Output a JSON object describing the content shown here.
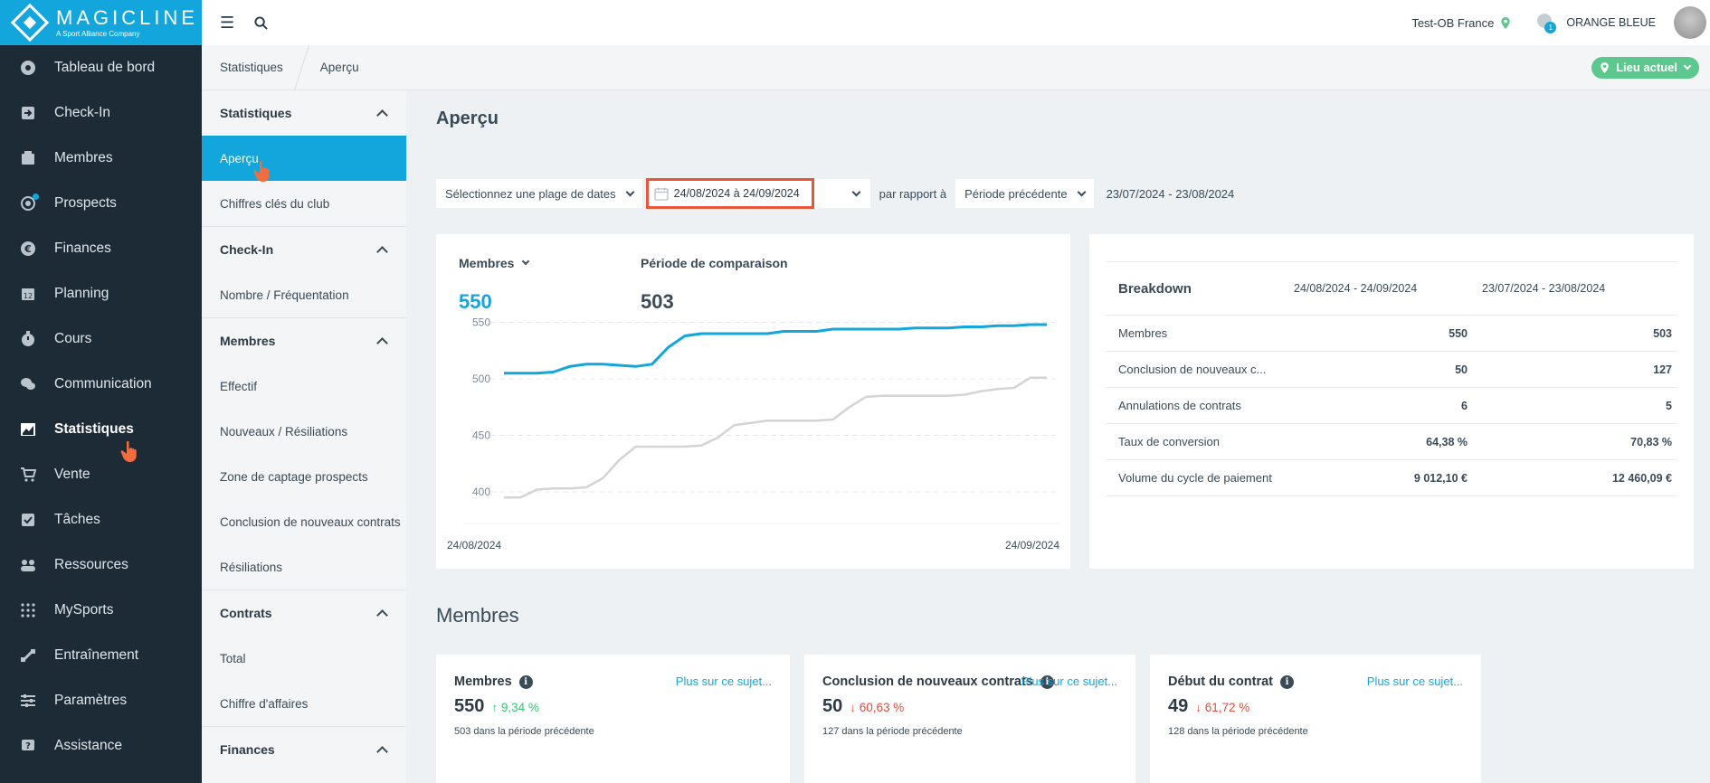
{
  "brand": {
    "name": "MAGICLINE",
    "tagline": "A Sport Alliance Company"
  },
  "sidebar": {
    "items": [
      {
        "label": "Tableau de bord",
        "icon": "dashboard-icon"
      },
      {
        "label": "Check-In",
        "icon": "checkin-icon"
      },
      {
        "label": "Membres",
        "icon": "members-icon"
      },
      {
        "label": "Prospects",
        "icon": "prospects-icon"
      },
      {
        "label": "Finances",
        "icon": "euro-icon"
      },
      {
        "label": "Planning",
        "icon": "calendar-icon"
      },
      {
        "label": "Cours",
        "icon": "stopwatch-icon"
      },
      {
        "label": "Communication",
        "icon": "chat-icon"
      },
      {
        "label": "Statistiques",
        "icon": "chart-icon"
      },
      {
        "label": "Vente",
        "icon": "cart-icon"
      },
      {
        "label": "Tâches",
        "icon": "checkbox-icon"
      },
      {
        "label": "Ressources",
        "icon": "people-icon"
      },
      {
        "label": "MySports",
        "icon": "grid-icon"
      },
      {
        "label": "Entraînement",
        "icon": "dumbbell-icon"
      },
      {
        "label": "Paramètres",
        "icon": "sliders-icon"
      },
      {
        "label": "Assistance",
        "icon": "help-icon"
      }
    ]
  },
  "topbar": {
    "site": "Test-OB France",
    "notifications": "1",
    "user": "ORANGE BLEUE"
  },
  "breadcrumb": {
    "items": [
      "Statistiques",
      "Aperçu"
    ],
    "location_button": "Lieu actuel"
  },
  "submenu": {
    "statistiques": {
      "title": "Statistiques",
      "items": [
        "Aperçu",
        "Chiffres clés du club"
      ]
    },
    "checkin": {
      "title": "Check-In",
      "items": [
        "Nombre / Fréquentation"
      ]
    },
    "membres": {
      "title": "Membres",
      "items": [
        "Effectif",
        "Nouveaux / Résiliations",
        "Zone de captage prospects",
        "Conclusion de nouveaux contrats",
        "Résiliations"
      ]
    },
    "contrats": {
      "title": "Contrats",
      "items": [
        "Total",
        "Chiffre d'affaires"
      ]
    },
    "finances": {
      "title": "Finances"
    }
  },
  "page": {
    "title": "Aperçu"
  },
  "filters": {
    "range_select": "Sélectionnez une plage de dates",
    "date_range": "24/08/2024 à 24/09/2024",
    "compare_label": "par rapport à",
    "compare_select": "Période précédente",
    "compare_range": "23/07/2024 - 23/08/2024"
  },
  "overview": {
    "metric_select": "Membres",
    "metric_value": "550",
    "comparison_label": "Période de comparaison",
    "comparison_value": "503",
    "x_start": "24/08/2024",
    "x_end": "24/09/2024"
  },
  "chart_data": {
    "type": "line",
    "ylim": [
      380,
      560
    ],
    "y_ticks": [
      400,
      450,
      500,
      550
    ],
    "x_labels": [
      "24/08/2024",
      "24/09/2024"
    ],
    "colors": {
      "current": "#13a6dc",
      "comparison": "#d4d4d4"
    },
    "series": [
      {
        "values": [
          505,
          505,
          505,
          506,
          511,
          513,
          513,
          512,
          511,
          513,
          528,
          538,
          540,
          540,
          540,
          540,
          540,
          542,
          542,
          542,
          544,
          544,
          544,
          544,
          544,
          545,
          545,
          545,
          546,
          546,
          547,
          547,
          548,
          548
        ]
      },
      {
        "values": [
          395,
          395,
          402,
          403,
          403,
          404,
          412,
          428,
          440,
          440,
          440,
          440,
          441,
          448,
          459,
          461,
          463,
          463,
          463,
          463,
          464,
          475,
          484,
          485,
          485,
          485,
          485,
          485,
          486,
          489,
          491,
          492,
          501,
          501
        ]
      }
    ]
  },
  "breakdown": {
    "title": "Breakdown",
    "col_current": "24/08/2024 - 24/09/2024",
    "col_previous": "23/07/2024 - 23/08/2024",
    "rows": [
      {
        "label": "Membres",
        "current": "550",
        "previous": "503"
      },
      {
        "label": "Conclusion de nouveaux c...",
        "current": "50",
        "previous": "127"
      },
      {
        "label": "Annulations de contrats",
        "current": "6",
        "previous": "5"
      },
      {
        "label": "Taux de conversion",
        "current": "64,38 %",
        "previous": "70,83 %"
      },
      {
        "label": "Volume du cycle de paiement",
        "current": "9 012,10 €",
        "previous": "12 460,09 €"
      }
    ]
  },
  "members_section": {
    "title": "Membres",
    "cards": [
      {
        "title": "Membres",
        "link": "Plus sur ce sujet...",
        "value": "550",
        "trend": "up",
        "change": "↑ 9,34 %",
        "sub": "503 dans la période précédente"
      },
      {
        "title": "Conclusion de nouveaux contrats",
        "link": "Plus sur ce sujet...",
        "value": "50",
        "trend": "down",
        "change": "↓ 60,63 %",
        "sub": "127 dans la période précédente"
      },
      {
        "title": "Début du contrat",
        "link": "Plus sur ce sujet...",
        "value": "49",
        "trend": "down",
        "change": "↓ 61,72 %",
        "sub": "128 dans la période précédente"
      }
    ]
  }
}
